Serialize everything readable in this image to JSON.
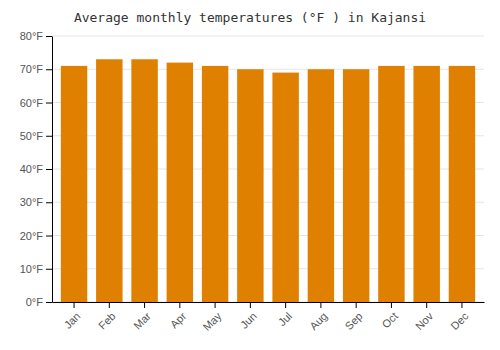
{
  "chart_data": {
    "type": "bar",
    "title": "Average monthly temperatures (°F ) in Kajansi",
    "categories": [
      "Jan",
      "Feb",
      "Mar",
      "Apr",
      "May",
      "Jun",
      "Jul",
      "Aug",
      "Sep",
      "Oct",
      "Nov",
      "Dec"
    ],
    "values": [
      71,
      73,
      73,
      72,
      71,
      70,
      69,
      70,
      70,
      71,
      71,
      71
    ],
    "color": "#E08000",
    "ylim": [
      0,
      80
    ],
    "yticks": [
      {
        "value": 0,
        "label": "0°F"
      },
      {
        "value": 10,
        "label": "10°F"
      },
      {
        "value": 20,
        "label": "20°F"
      },
      {
        "value": 30,
        "label": "30°F"
      },
      {
        "value": 40,
        "label": "40°F"
      },
      {
        "value": 50,
        "label": "50°F"
      },
      {
        "value": 60,
        "label": "60°F"
      },
      {
        "value": 70,
        "label": "70°F"
      },
      {
        "value": 80,
        "label": "80°F"
      }
    ],
    "grid": true
  }
}
